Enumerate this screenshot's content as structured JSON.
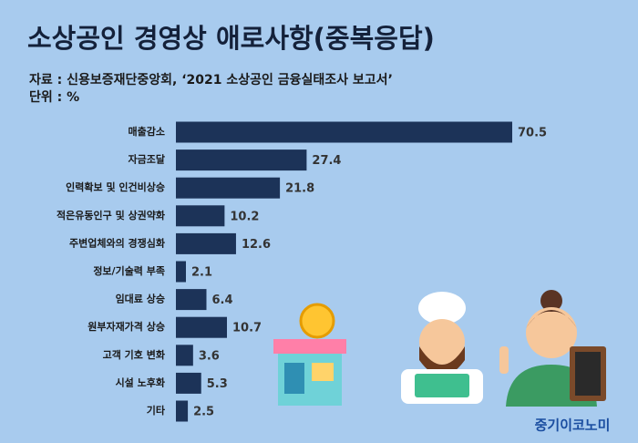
{
  "chart_data": {
    "type": "barh",
    "title": "소상공인 경영상 애로사항(중복응답)",
    "source": "자료 : 신용보증재단중앙회, ‘2021 소상공인 금융실태조사 보고서’",
    "unit": "단위 : %",
    "categories": [
      "매출감소",
      "자금조달",
      "인력확보 및 인건비상승",
      "적은유동인구 및 상권약화",
      "주변업체와의 경쟁심화",
      "정보/기술력 부족",
      "임대료 상승",
      "원부자재가격 상승",
      "고객 기호 변화",
      "시설 노후화",
      "기타"
    ],
    "values": [
      70.5,
      27.4,
      21.8,
      10.2,
      12.6,
      2.1,
      6.4,
      10.7,
      3.6,
      5.3,
      2.5
    ],
    "color": "#1c3358"
  },
  "brand": "중기이코노미"
}
